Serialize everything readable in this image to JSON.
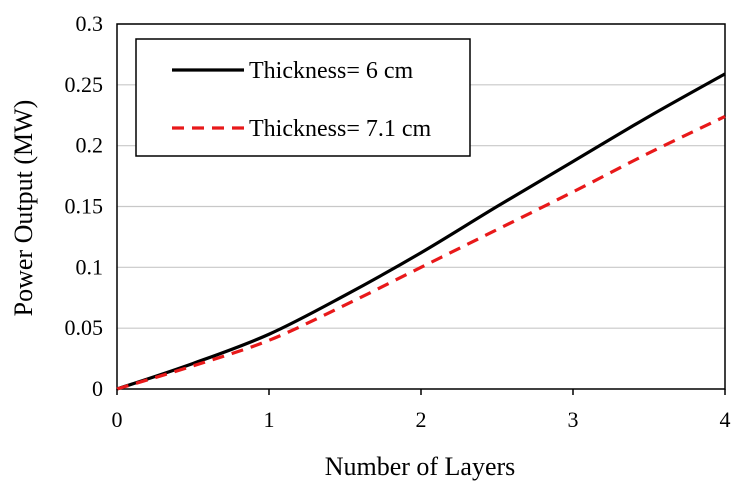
{
  "chart_data": {
    "type": "line",
    "title": "",
    "xlabel": "Number of Layers",
    "ylabel": "Power Output (MW)",
    "xlim": [
      0,
      4
    ],
    "ylim": [
      0,
      0.3
    ],
    "x_ticks": [
      "0",
      "1",
      "2",
      "3",
      "4"
    ],
    "y_ticks": [
      "0",
      "0.05",
      "0.1",
      "0.15",
      "0.2",
      "0.25",
      "0.3"
    ],
    "grid": "horizontal",
    "legend_position": "top-left",
    "series": [
      {
        "name": "Thickness= 6 cm",
        "color": "#000000",
        "style": "solid",
        "x": [
          0,
          0.5,
          1,
          1.5,
          2,
          2.5,
          3,
          3.5,
          4
        ],
        "y": [
          0,
          0.021,
          0.045,
          0.077,
          0.112,
          0.15,
          0.187,
          0.224,
          0.259
        ]
      },
      {
        "name": "Thickness= 7.1 cm",
        "color": "#e8191a",
        "style": "dashed",
        "x": [
          0,
          0.5,
          1,
          1.5,
          2,
          2.5,
          3,
          3.5,
          4
        ],
        "y": [
          0,
          0.019,
          0.04,
          0.069,
          0.1,
          0.131,
          0.162,
          0.194,
          0.224
        ]
      }
    ]
  }
}
